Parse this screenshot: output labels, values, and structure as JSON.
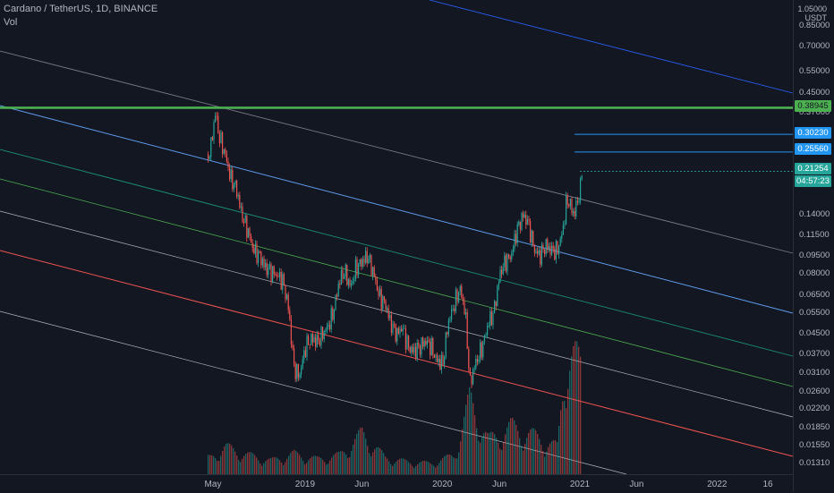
{
  "header": {
    "title": "Cardano / TetherUS, 1D, BINANCE",
    "sub": "Vol"
  },
  "axis": {
    "unit_top": "1.05000",
    "unit": "USDT",
    "price_labels": [
      "0.85000",
      "0.70000",
      "0.55000",
      "0.45000",
      "0.37000",
      "0.14000",
      "0.11500",
      "0.09500",
      "0.08000",
      "0.06500",
      "0.05500",
      "0.04500",
      "0.03700",
      "0.03100",
      "0.02600",
      "0.02200",
      "0.01850",
      "0.01550",
      "0.01310"
    ],
    "time_labels": [
      "May",
      "2019",
      "Jun",
      "2020",
      "Jun",
      "2021",
      "Jun",
      "2022",
      "16"
    ]
  },
  "badges": {
    "green": "0.38945",
    "blue1": "0.30230",
    "blue2": "0.25560",
    "last": "0.21254",
    "countdown": "04:57:23"
  },
  "colors": {
    "background": "#131722",
    "up": "#26a69a",
    "down": "#ef5350",
    "green_line": "#4caf50",
    "blue_line": "#2196f3"
  },
  "chart_data": {
    "type": "line",
    "title": "Cardano / TetherUS, 1D, BINANCE",
    "scale": "log",
    "ylim": [
      0.0125,
      1.05
    ],
    "horizontal_lines": [
      0.38945,
      0.3023,
      0.2556
    ],
    "last_price": 0.21254,
    "series": [
      {
        "x": [
          "2018-04-20",
          "2018-05-01",
          "2018-05-05",
          "2018-05-15",
          "2018-06-01",
          "2018-06-15",
          "2018-07-01",
          "2018-07-15",
          "2018-08-01",
          "2018-08-15",
          "2018-09-01",
          "2018-09-15",
          "2018-10-01",
          "2018-10-15",
          "2018-11-01",
          "2018-11-15",
          "2018-12-01",
          "2018-12-15",
          "2019-01-01",
          "2019-01-15",
          "2019-02-01",
          "2019-02-15",
          "2019-03-01",
          "2019-03-15",
          "2019-04-01",
          "2019-04-15",
          "2019-05-01",
          "2019-05-15",
          "2019-06-01",
          "2019-06-15",
          "2019-07-01",
          "2019-07-15",
          "2019-08-01",
          "2019-08-15",
          "2019-09-01",
          "2019-09-15",
          "2019-10-01",
          "2019-10-15",
          "2019-11-01",
          "2019-11-15",
          "2019-12-01",
          "2019-12-15",
          "2020-01-01",
          "2020-01-15",
          "2020-02-01",
          "2020-02-15",
          "2020-03-01",
          "2020-03-13",
          "2020-03-25",
          "2020-04-15",
          "2020-05-01",
          "2020-05-15",
          "2020-06-01",
          "2020-06-15",
          "2020-07-01",
          "2020-07-15",
          "2020-08-01",
          "2020-08-15",
          "2020-09-01",
          "2020-09-15",
          "2020-10-01",
          "2020-10-15",
          "2020-11-01",
          "2020-11-15",
          "2020-11-25",
          "2020-12-01",
          "2020-12-15",
          "2021-01-01",
          "2021-01-05"
        ],
        "y": [
          0.25,
          0.32,
          0.38,
          0.3,
          0.25,
          0.2,
          0.18,
          0.14,
          0.12,
          0.1,
          0.095,
          0.085,
          0.082,
          0.079,
          0.075,
          0.06,
          0.033,
          0.03,
          0.04,
          0.043,
          0.042,
          0.045,
          0.048,
          0.055,
          0.075,
          0.082,
          0.07,
          0.085,
          0.09,
          0.095,
          0.08,
          0.065,
          0.06,
          0.05,
          0.045,
          0.048,
          0.04,
          0.038,
          0.04,
          0.042,
          0.04,
          0.035,
          0.034,
          0.05,
          0.06,
          0.07,
          0.055,
          0.028,
          0.033,
          0.04,
          0.05,
          0.055,
          0.08,
          0.09,
          0.095,
          0.12,
          0.14,
          0.13,
          0.1,
          0.095,
          0.105,
          0.1,
          0.1,
          0.12,
          0.16,
          0.16,
          0.14,
          0.18,
          0.22
        ]
      }
    ],
    "volume": {
      "x": [
        "2018-04-20",
        "2018-06-01",
        "2018-08-01",
        "2018-10-01",
        "2018-12-01",
        "2019-02-01",
        "2019-04-01",
        "2019-06-01",
        "2019-08-01",
        "2019-10-01",
        "2019-12-01",
        "2020-02-01",
        "2020-03-13",
        "2020-05-01",
        "2020-07-01",
        "2020-09-01",
        "2020-11-01",
        "2020-11-25",
        "2021-01-05"
      ],
      "values": [
        12,
        20,
        14,
        10,
        15,
        11,
        14,
        30,
        12,
        9,
        8,
        14,
        55,
        25,
        35,
        28,
        20,
        95,
        75
      ]
    }
  }
}
